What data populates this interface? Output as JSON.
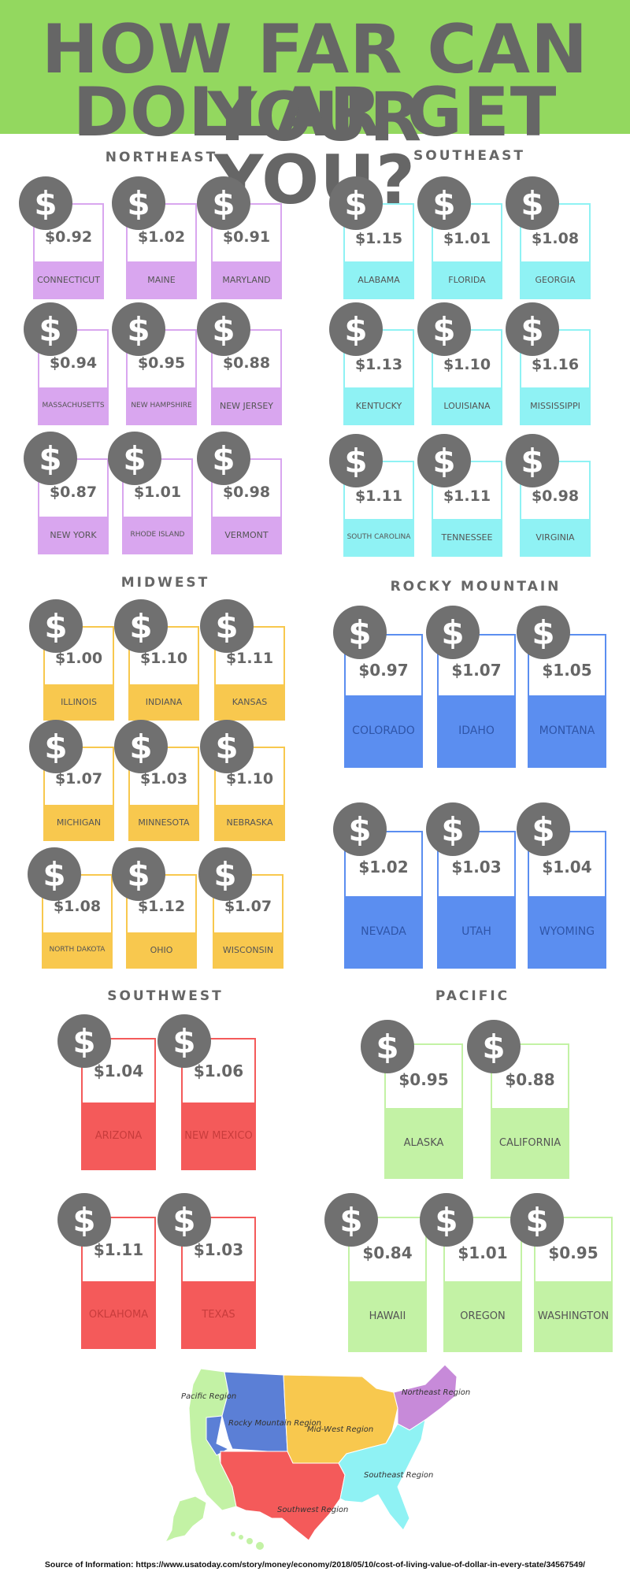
{
  "header": {
    "title_line1": "HOW FAR CAN YOUR",
    "title_line2": "DOLLAR GET YOU?",
    "bg_color": "#93d85f"
  },
  "regions": [
    {
      "name": "NORTHEAST",
      "color": "#d9a6ef",
      "states": [
        {
          "name": "CONNECTICUT",
          "value": "$0.92"
        },
        {
          "name": "MAINE",
          "value": "$1.02"
        },
        {
          "name": "MARYLAND",
          "value": "$0.91"
        },
        {
          "name": "MASSACHUSETTS",
          "value": "$0.94"
        },
        {
          "name": "NEW HAMPSHIRE",
          "value": "$0.95"
        },
        {
          "name": "NEW JERSEY",
          "value": "$0.88"
        },
        {
          "name": "NEW YORK",
          "value": "$0.87"
        },
        {
          "name": "RHODE ISLAND",
          "value": "$1.01"
        },
        {
          "name": "VERMONT",
          "value": "$0.98"
        }
      ]
    },
    {
      "name": "SOUTHEAST",
      "color": "#8ff2f4",
      "states": [
        {
          "name": "ALABAMA",
          "value": "$1.15"
        },
        {
          "name": "FLORIDA",
          "value": "$1.01"
        },
        {
          "name": "GEORGIA",
          "value": "$1.08"
        },
        {
          "name": "KENTUCKY",
          "value": "$1.13"
        },
        {
          "name": "LOUISIANA",
          "value": "$1.10"
        },
        {
          "name": "MISSISSIPPI",
          "value": "$1.16"
        },
        {
          "name": "SOUTH CAROLINA",
          "value": "$1.11"
        },
        {
          "name": "TENNESSEE",
          "value": "$1.11"
        },
        {
          "name": "VIRGINIA",
          "value": "$0.98"
        }
      ]
    },
    {
      "name": "MIDWEST",
      "color": "#f8c84e",
      "states": [
        {
          "name": "ILLINOIS",
          "value": "$1.00"
        },
        {
          "name": "INDIANA",
          "value": "$1.10"
        },
        {
          "name": "KANSAS",
          "value": "$1.11"
        },
        {
          "name": "MICHIGAN",
          "value": "$1.07"
        },
        {
          "name": "MINNESOTA",
          "value": "$1.03"
        },
        {
          "name": "NEBRASKA",
          "value": "$1.10"
        },
        {
          "name": "NORTH DAKOTA",
          "value": "$1.08"
        },
        {
          "name": "OHIO",
          "value": "$1.12"
        },
        {
          "name": "WISCONSIN",
          "value": "$1.07"
        }
      ]
    },
    {
      "name": "ROCKY MOUNTAIN",
      "color": "#5b8ef0",
      "states": [
        {
          "name": "COLORADO",
          "value": "$0.97"
        },
        {
          "name": "IDAHO",
          "value": "$1.07"
        },
        {
          "name": "MONTANA",
          "value": "$1.05"
        },
        {
          "name": "NEVADA",
          "value": "$1.02"
        },
        {
          "name": "UTAH",
          "value": "$1.03"
        },
        {
          "name": "WYOMING",
          "value": "$1.04"
        }
      ]
    },
    {
      "name": "SOUTHWEST",
      "color": "#f45a5a",
      "states": [
        {
          "name": "ARIZONA",
          "value": "$1.04"
        },
        {
          "name": "NEW MEXICO",
          "value": "$1.06"
        },
        {
          "name": "OKLAHOMA",
          "value": "$1.11"
        },
        {
          "name": "TEXAS",
          "value": "$1.03"
        }
      ]
    },
    {
      "name": "PACIFIC",
      "color": "#c3f2a5",
      "states": [
        {
          "name": "ALASKA",
          "value": "$0.95"
        },
        {
          "name": "CALIFORNIA",
          "value": "$0.88"
        },
        {
          "name": "HAWAII",
          "value": "$0.84"
        },
        {
          "name": "OREGON",
          "value": "$1.01"
        },
        {
          "name": "WASHINGTON",
          "value": "$0.95"
        }
      ]
    }
  ],
  "dollar_icon": {
    "symbol": "$",
    "color": "#707070",
    "icon": "dollar-icon"
  },
  "map": {
    "labels": {
      "pacific": "Pacific Region",
      "rocky": "Rocky Mountain Region",
      "midwest": "Mid-West Region",
      "northeast": "Northeast Region",
      "southeast": "Southeast Region",
      "southwest": "Southwest Region"
    }
  },
  "source": "Source of Information: https://www.usatoday.com/story/money/economy/2018/05/10/cost-of-living-value-of-dollar-in-every-state/34567549/"
}
